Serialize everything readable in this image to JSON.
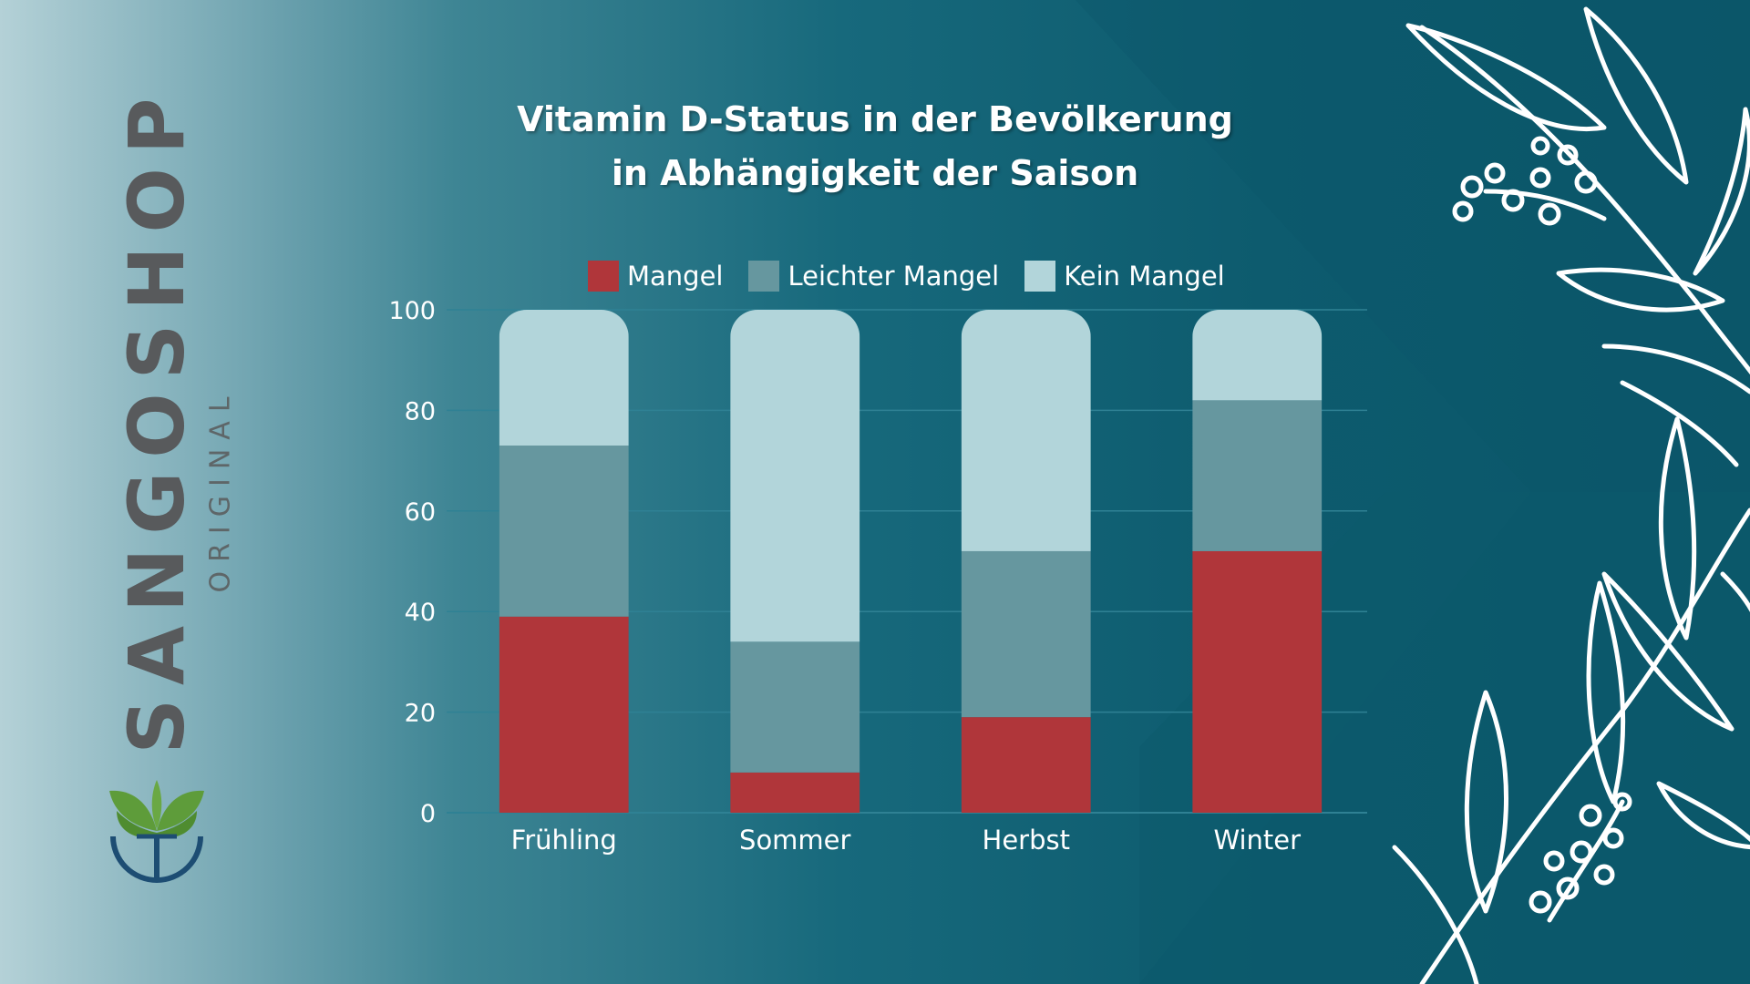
{
  "brand": {
    "name": "SANGOSHOP",
    "subtitle": "ORIGINAL",
    "logo_icon": "leaf-logo-icon",
    "colors": {
      "text": "#585a5c",
      "leaf_green": "#5e9c3a",
      "ring_blue": "#1d4d73"
    }
  },
  "colors": {
    "Mangel": "#b0363a",
    "Leichter Mangel": "#66979f",
    "Kein Mangel": "#b2d5da",
    "gridline": "#2f8194"
  },
  "chart_data": {
    "type": "bar",
    "stacked": true,
    "title_lines": [
      "Vitamin D-Status in der Bevölkerung",
      "in Abhängigkeit der Saison"
    ],
    "categories": [
      "Frühling",
      "Sommer",
      "Herbst",
      "Winter"
    ],
    "series": [
      {
        "name": "Mangel",
        "values": [
          39,
          8,
          19,
          52
        ]
      },
      {
        "name": "Leichter Mangel",
        "values": [
          34,
          26,
          33,
          30
        ]
      },
      {
        "name": "Kein Mangel",
        "values": [
          27,
          66,
          48,
          18
        ]
      }
    ],
    "ylim": [
      0,
      100
    ],
    "yticks": [
      "0",
      "20",
      "40",
      "60",
      "80",
      "100"
    ],
    "ytick_values": [
      0,
      20,
      40,
      60,
      80,
      100
    ],
    "grid": true,
    "legend_position": "top"
  }
}
